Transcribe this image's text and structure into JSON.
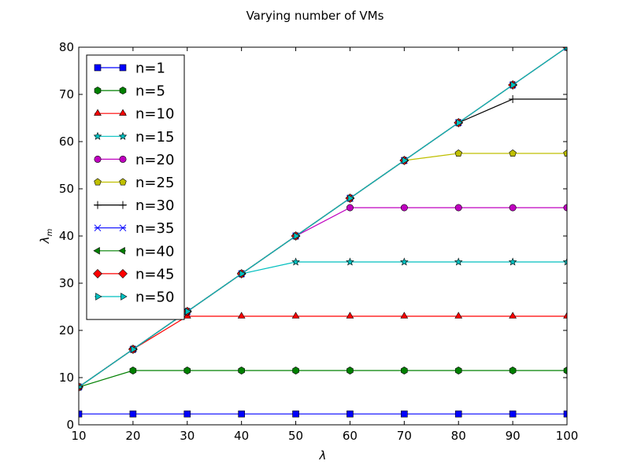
{
  "chart_data": {
    "type": "line",
    "title": "Varying number of VMs",
    "xlabel": "λ",
    "ylabel": "λ",
    "ylabel_sub": "m",
    "xlim": [
      10,
      100
    ],
    "ylim": [
      0,
      80
    ],
    "xticks": [
      10,
      20,
      30,
      40,
      50,
      60,
      70,
      80,
      90,
      100
    ],
    "yticks": [
      0,
      10,
      20,
      30,
      40,
      50,
      60,
      70,
      80
    ],
    "grid": false,
    "legend_position": "top-left",
    "x": [
      10,
      20,
      30,
      40,
      50,
      60,
      70,
      80,
      90,
      100
    ],
    "series": [
      {
        "name": "n=1",
        "marker": "square",
        "color": "#0000ff",
        "values": [
          2.3,
          2.3,
          2.3,
          2.3,
          2.3,
          2.3,
          2.3,
          2.3,
          2.3,
          2.3
        ]
      },
      {
        "name": "n=5",
        "marker": "hexagon",
        "color": "#008000",
        "values": [
          8,
          11.5,
          11.5,
          11.5,
          11.5,
          11.5,
          11.5,
          11.5,
          11.5,
          11.5
        ]
      },
      {
        "name": "n=10",
        "marker": "triangle",
        "color": "#ff0000",
        "values": [
          8,
          16,
          23,
          23,
          23,
          23,
          23,
          23,
          23,
          23
        ]
      },
      {
        "name": "n=15",
        "marker": "star",
        "color": "#00bfbf",
        "values": [
          8,
          16,
          24,
          32,
          34.5,
          34.5,
          34.5,
          34.5,
          34.5,
          34.5
        ]
      },
      {
        "name": "n=20",
        "marker": "circle",
        "color": "#bf00bf",
        "values": [
          8,
          16,
          24,
          32,
          40,
          46,
          46,
          46,
          46,
          46
        ]
      },
      {
        "name": "n=25",
        "marker": "pentagon",
        "color": "#bfbf00",
        "values": [
          8,
          16,
          24,
          32,
          40,
          48,
          56,
          57.5,
          57.5,
          57.5
        ]
      },
      {
        "name": "n=30",
        "marker": "plus",
        "color": "#000000",
        "values": [
          8,
          16,
          24,
          32,
          40,
          48,
          56,
          64,
          69,
          69
        ]
      },
      {
        "name": "n=35",
        "marker": "x",
        "color": "#0000ff",
        "values": [
          8,
          16,
          24,
          32,
          40,
          48,
          56,
          64,
          72,
          80
        ]
      },
      {
        "name": "n=40",
        "marker": "tri-left",
        "color": "#008000",
        "values": [
          8,
          16,
          24,
          32,
          40,
          48,
          56,
          64,
          72,
          80
        ]
      },
      {
        "name": "n=45",
        "marker": "diamond",
        "color": "#ff0000",
        "values": [
          8,
          16,
          24,
          32,
          40,
          48,
          56,
          64,
          72,
          80
        ]
      },
      {
        "name": "n=50",
        "marker": "tri-right",
        "color": "#00bfbf",
        "values": [
          8,
          16,
          24,
          32,
          40,
          48,
          56,
          64,
          72,
          80
        ]
      }
    ]
  }
}
